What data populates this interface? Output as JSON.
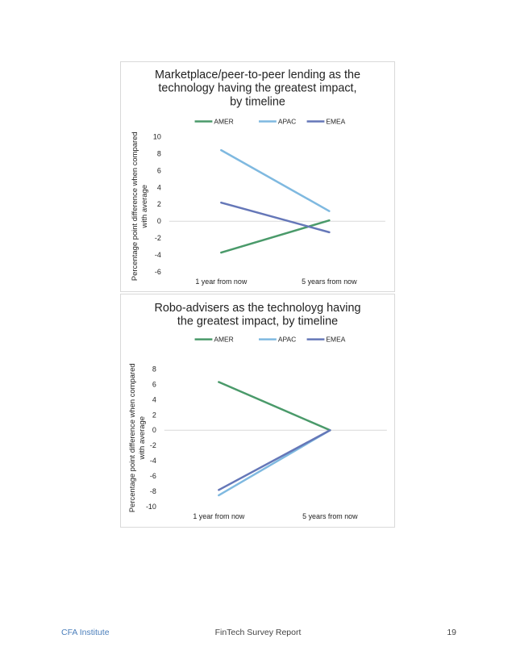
{
  "chart_data": [
    {
      "type": "line",
      "title_lines": [
        "Marketplace/peer-to-peer lending as the",
        "technology having the greatest impact,",
        "by timeline"
      ],
      "ylabel_lines": [
        "Percentage point difference when compared",
        "with average"
      ],
      "categories": [
        "1 year from now",
        "5 years from now"
      ],
      "series": [
        {
          "name": "AMER",
          "color": "#4a9a6a",
          "values": [
            -3.7,
            0.1
          ]
        },
        {
          "name": "APAC",
          "color": "#7fb9e0",
          "values": [
            8.4,
            1.2
          ]
        },
        {
          "name": "EMEA",
          "color": "#6577b8",
          "values": [
            2.2,
            -1.3
          ]
        }
      ],
      "yticks": [
        10,
        8,
        6,
        4,
        2,
        0,
        -2,
        -4,
        -6
      ],
      "ylim": [
        -6,
        10
      ],
      "legend": "top",
      "grid": false
    },
    {
      "type": "line",
      "title_lines": [
        "Robo-advisers as the technoloyg having",
        "the greatest impact, by timeline"
      ],
      "ylabel_lines": [
        "Percentage point difference when compared",
        "with average"
      ],
      "categories": [
        "1 year from now",
        "5 years from now"
      ],
      "series": [
        {
          "name": "AMER",
          "color": "#4a9a6a",
          "values": [
            6.3,
            0
          ]
        },
        {
          "name": "APAC",
          "color": "#7fb9e0",
          "values": [
            -8.5,
            0
          ]
        },
        {
          "name": "EMEA",
          "color": "#6577b8",
          "values": [
            -7.8,
            0
          ]
        }
      ],
      "yticks": [
        8,
        6,
        4,
        2,
        0,
        -2,
        -4,
        -6,
        -8,
        -10
      ],
      "ylim": [
        -10,
        8
      ],
      "legend": "top",
      "grid": false
    }
  ],
  "footer": {
    "left": "CFA Institute",
    "center": "FinTech Survey Report",
    "right": "19"
  }
}
